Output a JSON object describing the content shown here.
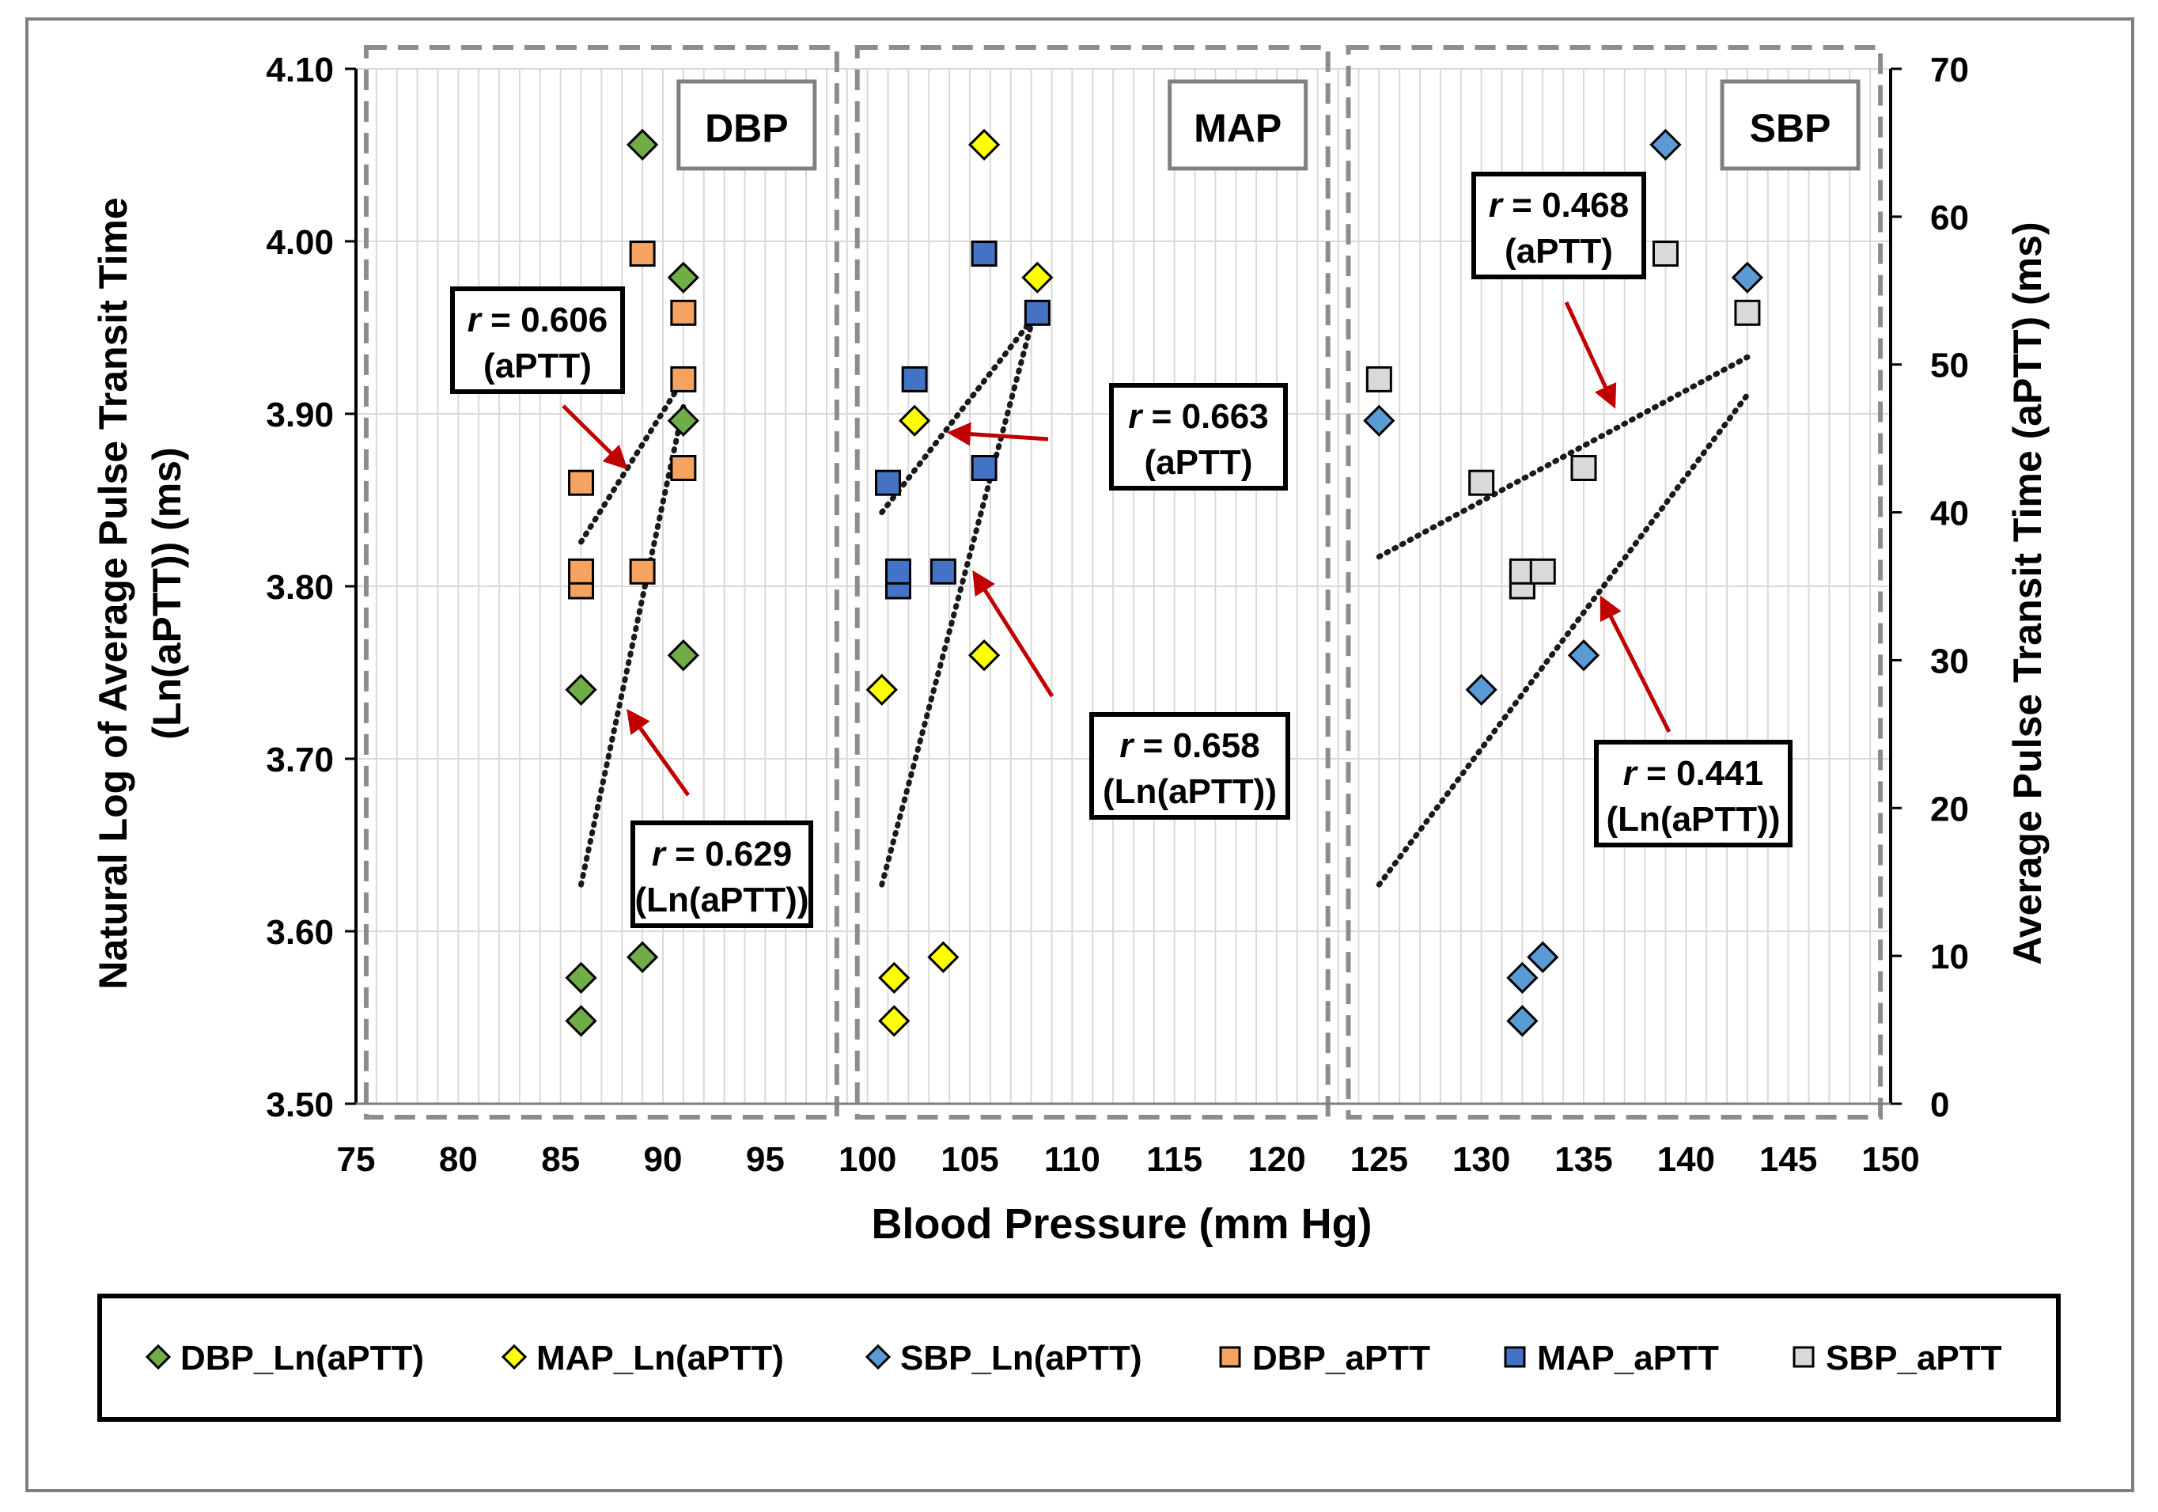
{
  "chart_data": {
    "type": "scatter",
    "x_axis": {
      "label": "Blood Pressure (mm Hg)",
      "range": [
        75,
        150
      ],
      "ticks": [
        75,
        80,
        85,
        90,
        95,
        100,
        105,
        110,
        115,
        120,
        125,
        130,
        135,
        140,
        145,
        150
      ]
    },
    "y_axis_left": {
      "label_line1": "Natural Log of  Average Pulse Transit Time",
      "label_line2": "(Ln(aPTT))  (ms)",
      "range": [
        3.5,
        4.1
      ],
      "ticks": [
        "3.50",
        "3.60",
        "3.70",
        "3.80",
        "3.90",
        "4.00",
        "4.10"
      ]
    },
    "y_axis_right": {
      "label": "Average Pulse Transit Time (aPTT) (ms)",
      "range": [
        0,
        70
      ],
      "ticks": [
        "0",
        "10",
        "20",
        "30",
        "40",
        "50",
        "60",
        "70"
      ]
    },
    "panels": [
      {
        "label": "DBP",
        "x_range": [
          75.5,
          98.5
        ]
      },
      {
        "label": "MAP",
        "x_range": [
          99.5,
          122.5
        ]
      },
      {
        "label": "SBP",
        "x_range": [
          123.5,
          149.5
        ]
      }
    ],
    "series": [
      {
        "name": "DBP_Ln(aPTT)",
        "axis": "left",
        "marker": "diamond",
        "color": "#70ad47",
        "x": [
          86,
          86,
          86,
          89,
          89,
          91,
          91,
          91
        ],
        "y": [
          3.548,
          3.573,
          3.74,
          3.585,
          4.056,
          3.979,
          3.896,
          3.76
        ]
      },
      {
        "name": "MAP_Ln(aPTT)",
        "axis": "left",
        "marker": "diamond",
        "color": "#ffff00",
        "x": [
          101.3,
          101.3,
          100.7,
          103.7,
          105.7,
          105.7,
          102.3,
          108.3
        ],
        "y": [
          3.548,
          3.573,
          3.74,
          3.585,
          4.056,
          3.76,
          3.896,
          3.979
        ]
      },
      {
        "name": "SBP_Ln(aPTT)",
        "axis": "left",
        "marker": "diamond",
        "color": "#5b9bd5",
        "x": [
          132,
          132,
          130,
          133,
          139,
          143,
          125,
          135
        ],
        "y": [
          3.548,
          3.573,
          3.74,
          3.585,
          4.056,
          3.979,
          3.896,
          3.76
        ]
      },
      {
        "name": "DBP_aPTT",
        "axis": "right",
        "marker": "square",
        "color": "#f4a460",
        "x": [
          86,
          86,
          86,
          89,
          89,
          91,
          91,
          91
        ],
        "y": [
          42,
          35,
          36,
          36,
          57.5,
          53.5,
          49,
          43
        ]
      },
      {
        "name": "MAP_aPTT",
        "axis": "right",
        "marker": "square",
        "color": "#4472c4",
        "x": [
          101,
          101.5,
          101.5,
          103.7,
          105.7,
          108.3,
          102.3,
          105.7
        ],
        "y": [
          42,
          35,
          36,
          36,
          57.5,
          53.5,
          49,
          43
        ]
      },
      {
        "name": "SBP_aPTT",
        "axis": "right",
        "marker": "square",
        "color": "#d9d9d9",
        "x": [
          130,
          132,
          132,
          133,
          139,
          143,
          125,
          135
        ],
        "y": [
          42,
          35,
          36,
          36,
          57.5,
          53.5,
          49,
          43
        ]
      }
    ],
    "trendlines": [
      {
        "panel": "DBP",
        "axis": "right",
        "x": [
          86,
          91
        ],
        "y": [
          38,
          49
        ]
      },
      {
        "panel": "DBP",
        "axis": "left",
        "x": [
          86,
          91
        ],
        "y": [
          3.627,
          3.904
        ]
      },
      {
        "panel": "MAP",
        "axis": "right",
        "x": [
          100.7,
          108.3
        ],
        "y": [
          40,
          53.5
        ]
      },
      {
        "panel": "MAP",
        "axis": "left",
        "x": [
          100.7,
          108.3
        ],
        "y": [
          3.627,
          3.965
        ]
      },
      {
        "panel": "SBP",
        "axis": "right",
        "x": [
          125,
          143
        ],
        "y": [
          37,
          50.5
        ]
      },
      {
        "panel": "SBP",
        "axis": "left",
        "x": [
          125,
          143
        ],
        "y": [
          3.627,
          3.911
        ]
      }
    ],
    "annotations": [
      {
        "r_prefix": "r",
        "r_value": " = 0.606",
        "subtitle": "(aPTT)"
      },
      {
        "r_prefix": "r",
        "r_value": " = 0.629",
        "subtitle": "(Ln(aPTT))"
      },
      {
        "r_prefix": "r",
        "r_value": " = 0.663",
        "subtitle": "(aPTT)"
      },
      {
        "r_prefix": "r",
        "r_value": " = 0.658",
        "subtitle": "(Ln(aPTT))"
      },
      {
        "r_prefix": "r",
        "r_value": " = 0.468",
        "subtitle": "(aPTT)"
      },
      {
        "r_prefix": "r",
        "r_value": " = 0.441",
        "subtitle": "(Ln(aPTT))"
      }
    ],
    "legend_position": "bottom",
    "grid": true
  },
  "colors": {
    "arrow": "#c00000",
    "panel_border": "#8c8c8c",
    "grid": "#d9d9d9",
    "axis": "#000000"
  }
}
